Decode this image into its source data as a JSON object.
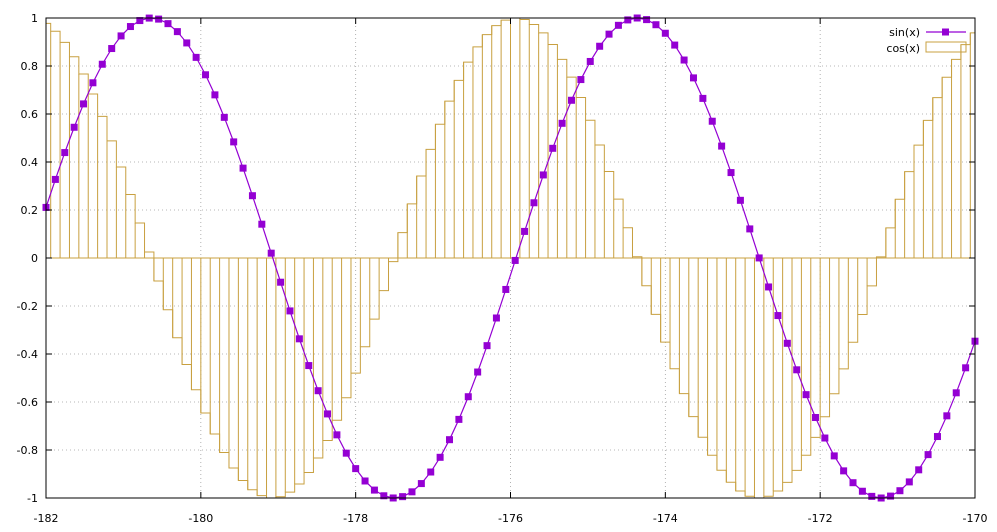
{
  "chart_data": {
    "type": "line",
    "title": "",
    "xlabel": "",
    "ylabel": "",
    "xlim": [
      -182,
      -170
    ],
    "ylim": [
      -1,
      1
    ],
    "x_ticks": [
      -182,
      -180,
      -178,
      -176,
      -174,
      -172,
      -170
    ],
    "x_tick_labels": [
      "-182",
      "-180",
      "-178",
      "-176",
      "-174",
      "-172",
      "-170"
    ],
    "y_ticks": [
      -1,
      -0.8,
      -0.6,
      -0.4,
      -0.2,
      0,
      0.2,
      0.4,
      0.6,
      0.8,
      1
    ],
    "y_tick_labels": [
      "-1",
      "-0.8",
      "-0.6",
      "-0.4",
      "-0.2",
      "0",
      "0.2",
      "0.4",
      "0.6",
      "0.8",
      "1"
    ],
    "grid": true,
    "legend_position": "top-right",
    "samples": 100,
    "series": [
      {
        "name": "sin(x)",
        "function": "sin",
        "style": "linespoints",
        "marker": "filled-square",
        "color": "#9400d3"
      },
      {
        "name": "cos(x)",
        "function": "cos",
        "style": "histeps",
        "color": "#c8a040"
      }
    ]
  }
}
